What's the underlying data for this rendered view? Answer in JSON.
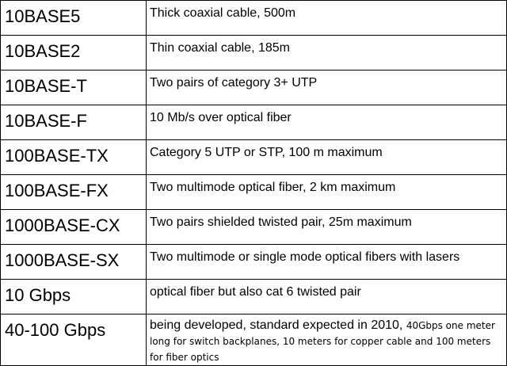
{
  "rows": [
    {
      "name": "10BASE5",
      "description": "Thick coaxial cable, 500m"
    },
    {
      "name": "10BASE2",
      "description": "Thin coaxial cable, 185m"
    },
    {
      "name": "10BASE-T",
      "description": "Two pairs of category 3+ UTP"
    },
    {
      "name": "10BASE-F",
      "description": "10 Mb/s over optical fiber"
    },
    {
      "name": "100BASE-TX",
      "description": "Category 5 UTP or STP, 100 m maximum"
    },
    {
      "name": "100BASE-FX",
      "description": "Two multimode optical fiber, 2 km maximum"
    },
    {
      "name": "1000BASE-CX",
      "description": "Two pairs shielded twisted pair, 25m maximum"
    },
    {
      "name": "1000BASE-SX",
      "description": "Two multimode or single mode optical fibers with lasers"
    },
    {
      "name": "10 Gbps",
      "description": "optical fiber but also cat 6 twisted pair"
    },
    {
      "name": "40-100 Gbps",
      "description": "being developed, standard expected in 2010,",
      "description_note": "40Gbps one meter long for switch backplanes, 10 meters for copper cable and 100 meters for fiber optics"
    }
  ]
}
